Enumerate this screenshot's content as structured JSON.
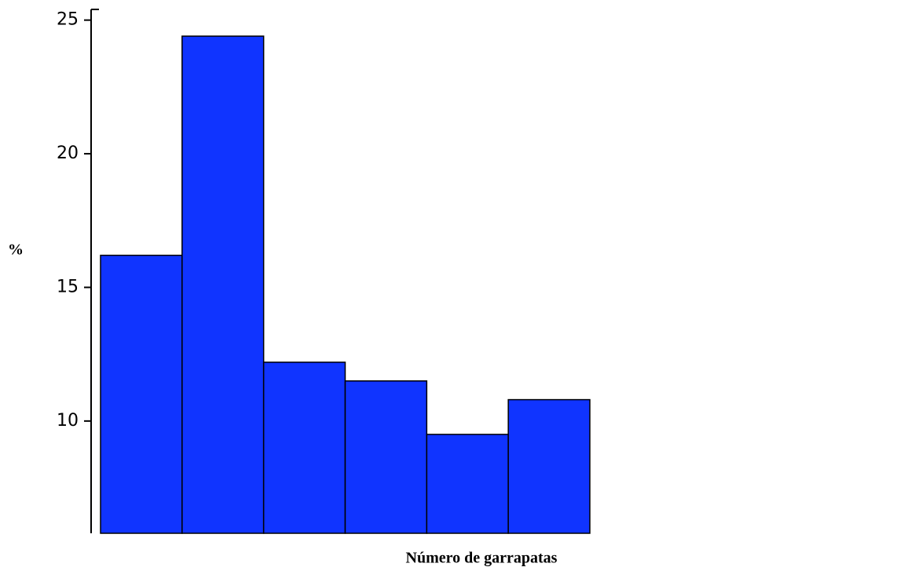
{
  "chart_data": {
    "type": "bar",
    "x_label": "Número de garrapatas",
    "y_label": "%",
    "categories": [
      null,
      null,
      null,
      null,
      null,
      null
    ],
    "values": [
      16.2,
      24.4,
      12.2,
      11.5,
      9.5,
      10.8
    ],
    "color": "#1034ff",
    "ylim": [
      5.8,
      25.4
    ],
    "yticks": [
      10,
      15,
      20,
      25
    ],
    "grid": false
  }
}
